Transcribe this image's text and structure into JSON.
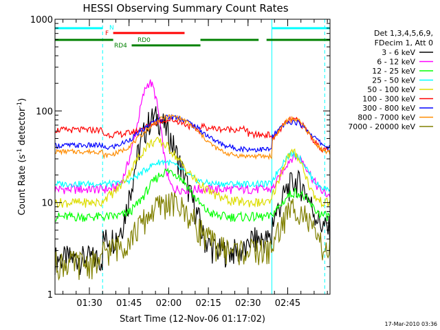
{
  "chart_data": {
    "type": "line",
    "title": "HESSI Observing Summary Count Rates",
    "xlabel": "Start Time (12-Nov-06 01:17:02)",
    "ylabel_main": "Count Rate (s",
    "ylabel_sup1": "-1",
    "ylabel_mid": " detector",
    "ylabel_sup2": "-1",
    "ylabel_end": ")",
    "yscale": "log",
    "ylim": [
      1,
      1000
    ],
    "xlim_minutes": [
      0,
      104
    ],
    "y_ticks": [
      "1",
      "10",
      "100",
      "1000"
    ],
    "x_ticks": [
      {
        "m": 13,
        "label": "01:30"
      },
      {
        "m": 28,
        "label": "01:45"
      },
      {
        "m": 43,
        "label": "02:00"
      },
      {
        "m": 58,
        "label": "02:15"
      },
      {
        "m": 73,
        "label": "02:30"
      },
      {
        "m": 88,
        "label": "02:45"
      }
    ],
    "legend": {
      "header1": "Det 1,3,4,5,6,9,",
      "header2": "FDecim 1, Att 0",
      "placement": "right"
    },
    "series": [
      {
        "name": "3 - 6 keV",
        "color": "#000000"
      },
      {
        "name": "6 - 12 keV",
        "color": "#ff00ff"
      },
      {
        "name": "12 - 25 keV",
        "color": "#00ff00"
      },
      {
        "name": "25 - 50 keV",
        "color": "#00ffff"
      },
      {
        "name": "50 - 100 keV",
        "color": "#dddd00"
      },
      {
        "name": "100 - 300 keV",
        "color": "#ff0000"
      },
      {
        "name": "300 - 800 keV",
        "color": "#0000ff"
      },
      {
        "name": "800 - 7000 keV",
        "color": "#ff8c00"
      },
      {
        "name": "7000 - 20000 keV",
        "color": "#808000"
      }
    ],
    "flags": [
      {
        "label": "N",
        "color": "#00ffff",
        "segments": [
          [
            0,
            18
          ],
          [
            82,
            104
          ]
        ]
      },
      {
        "label": "F",
        "color": "#ff0000",
        "segments": [
          [
            22,
            49
          ]
        ]
      },
      {
        "label": "RD0",
        "color": "#008000",
        "segments": [
          [
            0,
            22
          ],
          [
            55,
            77
          ],
          [
            80,
            104
          ]
        ]
      },
      {
        "label": "RD4",
        "color": "#008000",
        "segments": [
          [
            29,
            55
          ]
        ]
      }
    ],
    "boundaries": [
      {
        "m": 18,
        "style": "dashed"
      },
      {
        "m": 82,
        "style": "solid"
      },
      {
        "m": 102,
        "style": "dashed"
      }
    ]
  },
  "footer": {
    "timestamp": "17-Mar-2010 03:36"
  }
}
